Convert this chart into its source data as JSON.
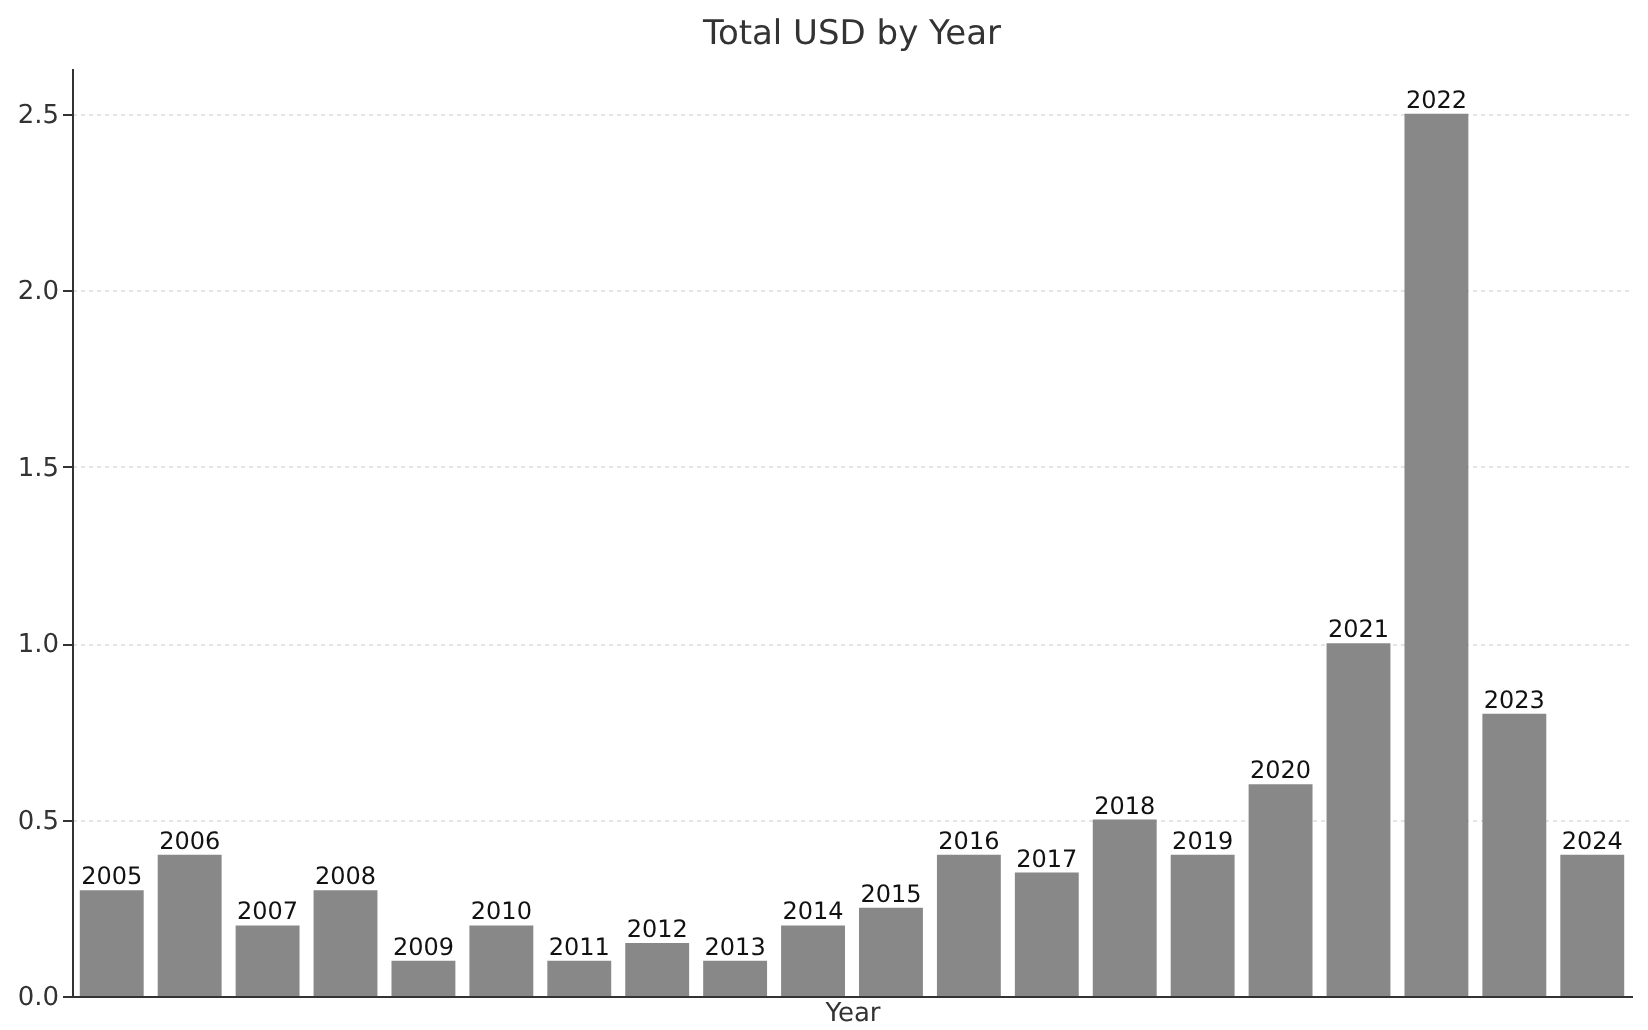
{
  "chart_data": {
    "type": "bar",
    "title": "Total USD by Year",
    "xlabel": "Year",
    "categories": [
      "2005",
      "2006",
      "2007",
      "2008",
      "2009",
      "2010",
      "2011",
      "2012",
      "2013",
      "2014",
      "2015",
      "2016",
      "2017",
      "2018",
      "2019",
      "2020",
      "2021",
      "2022",
      "2023",
      "2024"
    ],
    "values": [
      0.3,
      0.4,
      0.2,
      0.3,
      0.1,
      0.2,
      0.1,
      0.15,
      0.1,
      0.2,
      0.25,
      0.4,
      0.35,
      0.5,
      0.4,
      0.6,
      1.0,
      2.5,
      0.8,
      0.4
    ],
    "color": "#888888",
    "ylim": [
      0,
      2.63
    ],
    "yticks": [
      {
        "value": 0,
        "label": "0.0"
      },
      {
        "value": 0.5,
        "label": "0.5"
      },
      {
        "value": 1,
        "label": "1.0"
      },
      {
        "value": 1.5,
        "label": "1.5"
      },
      {
        "value": 2,
        "label": "2.0"
      },
      {
        "value": 2.5,
        "label": "2.5"
      }
    ],
    "grid": "y",
    "tick_labels": "y"
  }
}
